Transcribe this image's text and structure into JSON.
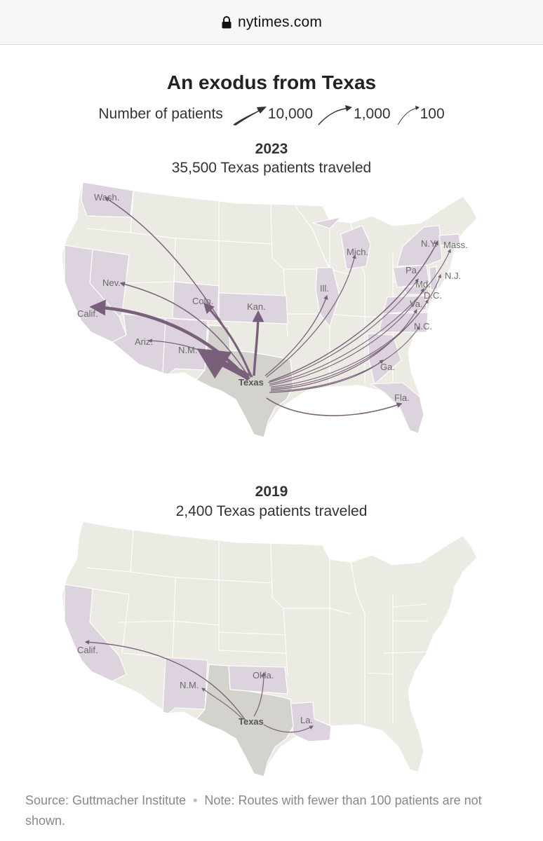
{
  "browser": {
    "domain": "nytimes.com"
  },
  "title": "An exodus from Texas",
  "legend": {
    "label": "Number of patients",
    "items": [
      "10,000",
      "1,000",
      "100"
    ]
  },
  "maps": [
    {
      "year": "2023",
      "subtitle": "35,500 Texas patients traveled",
      "origin": "Texas",
      "destinations": [
        "Wash.",
        "Nev.",
        "Calif.",
        "Ariz.",
        "N.M.",
        "Colo.",
        "Kan.",
        "Ill.",
        "Mich.",
        "N.Y.",
        "Mass.",
        "N.J.",
        "Pa.",
        "Md.",
        "D.C.",
        "Va.",
        "N.C.",
        "Ga.",
        "Fla."
      ]
    },
    {
      "year": "2019",
      "subtitle": "2,400 Texas patients traveled",
      "origin": "Texas",
      "destinations": [
        "Calif.",
        "N.M.",
        "Okla.",
        "La."
      ]
    }
  ],
  "footer": {
    "source": "Source: Guttmacher Institute",
    "note": "Note: Routes with fewer than 100 patients are not shown."
  },
  "colors": {
    "land": "#ecebe3",
    "destination": "#ddd3de",
    "texas": "#d3d2cc",
    "arrow": "#7a5f7a",
    "border": "#ffffff"
  }
}
